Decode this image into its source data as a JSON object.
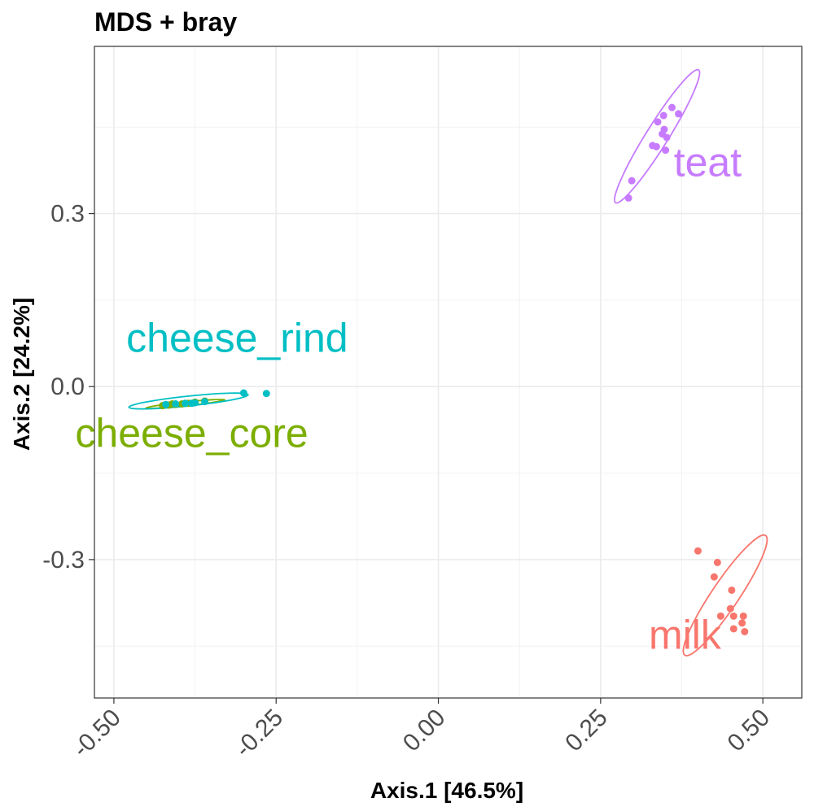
{
  "chart_data": {
    "type": "scatter",
    "title": "MDS + bray",
    "xlabel": "Axis.1 [46.5%]",
    "ylabel": "Axis.2 [24.2%]",
    "xlim": [
      -0.53,
      0.56
    ],
    "ylim": [
      -0.54,
      0.59
    ],
    "xticks": [
      -0.5,
      -0.25,
      0.0,
      0.25,
      0.5
    ],
    "xtick_labels": [
      "-0.50",
      "-0.25",
      "0.00",
      "0.25",
      "0.50"
    ],
    "yticks": [
      -0.3,
      0.0,
      0.3
    ],
    "ytick_labels": [
      "-0.3",
      "0.0",
      "0.3"
    ],
    "grid": true,
    "legend": "none",
    "series": [
      {
        "name": "cheese_core",
        "color": "#7CAE00",
        "label_pos": [
          -0.38,
          -0.105
        ],
        "points": [
          [
            -0.425,
            -0.033
          ],
          [
            -0.415,
            -0.032
          ],
          [
            -0.405,
            -0.031
          ],
          [
            -0.395,
            -0.03
          ],
          [
            -0.385,
            -0.029
          ],
          [
            -0.375,
            -0.027
          ],
          [
            -0.36,
            -0.025
          ],
          [
            -0.41,
            -0.03
          ]
        ],
        "ellipse": {
          "cx": -0.39,
          "cy": -0.03,
          "rx": 0.065,
          "ry": 0.003,
          "angle": 6
        }
      },
      {
        "name": "cheese_rind",
        "color": "#00BFC4",
        "label_pos": [
          -0.31,
          0.06
        ],
        "points": [
          [
            -0.42,
            -0.031
          ],
          [
            -0.405,
            -0.03
          ],
          [
            -0.39,
            -0.029
          ],
          [
            -0.375,
            -0.028
          ],
          [
            -0.36,
            -0.026
          ],
          [
            -0.3,
            -0.011
          ],
          [
            -0.265,
            -0.012
          ],
          [
            -0.38,
            -0.029
          ]
        ],
        "ellipse": {
          "cx": -0.385,
          "cy": -0.025,
          "rx": 0.098,
          "ry": 0.008,
          "angle": 6
        }
      },
      {
        "name": "teat",
        "color": "#C77CFF",
        "label_pos": [
          0.415,
          0.365
        ],
        "points": [
          [
            0.293,
            0.327
          ],
          [
            0.298,
            0.357
          ],
          [
            0.33,
            0.418
          ],
          [
            0.336,
            0.416
          ],
          [
            0.35,
            0.41
          ],
          [
            0.352,
            0.432
          ],
          [
            0.348,
            0.446
          ],
          [
            0.338,
            0.459
          ],
          [
            0.347,
            0.47
          ],
          [
            0.36,
            0.484
          ],
          [
            0.37,
            0.473
          ],
          [
            0.345,
            0.438
          ]
        ],
        "ellipse": {
          "cx": 0.337,
          "cy": 0.434,
          "rx": 0.128,
          "ry": 0.018,
          "angle": 58
        }
      },
      {
        "name": "milk",
        "color": "#F8766D",
        "label_pos": [
          0.38,
          -0.455
        ],
        "points": [
          [
            0.4,
            -0.285
          ],
          [
            0.43,
            -0.305
          ],
          [
            0.425,
            -0.33
          ],
          [
            0.452,
            -0.353
          ],
          [
            0.45,
            -0.385
          ],
          [
            0.435,
            -0.398
          ],
          [
            0.455,
            -0.398
          ],
          [
            0.47,
            -0.398
          ],
          [
            0.468,
            -0.41
          ],
          [
            0.455,
            -0.42
          ],
          [
            0.472,
            -0.425
          ]
        ],
        "ellipse": {
          "cx": 0.442,
          "cy": -0.362,
          "rx": 0.118,
          "ry": 0.022,
          "angle": 56
        }
      }
    ]
  }
}
